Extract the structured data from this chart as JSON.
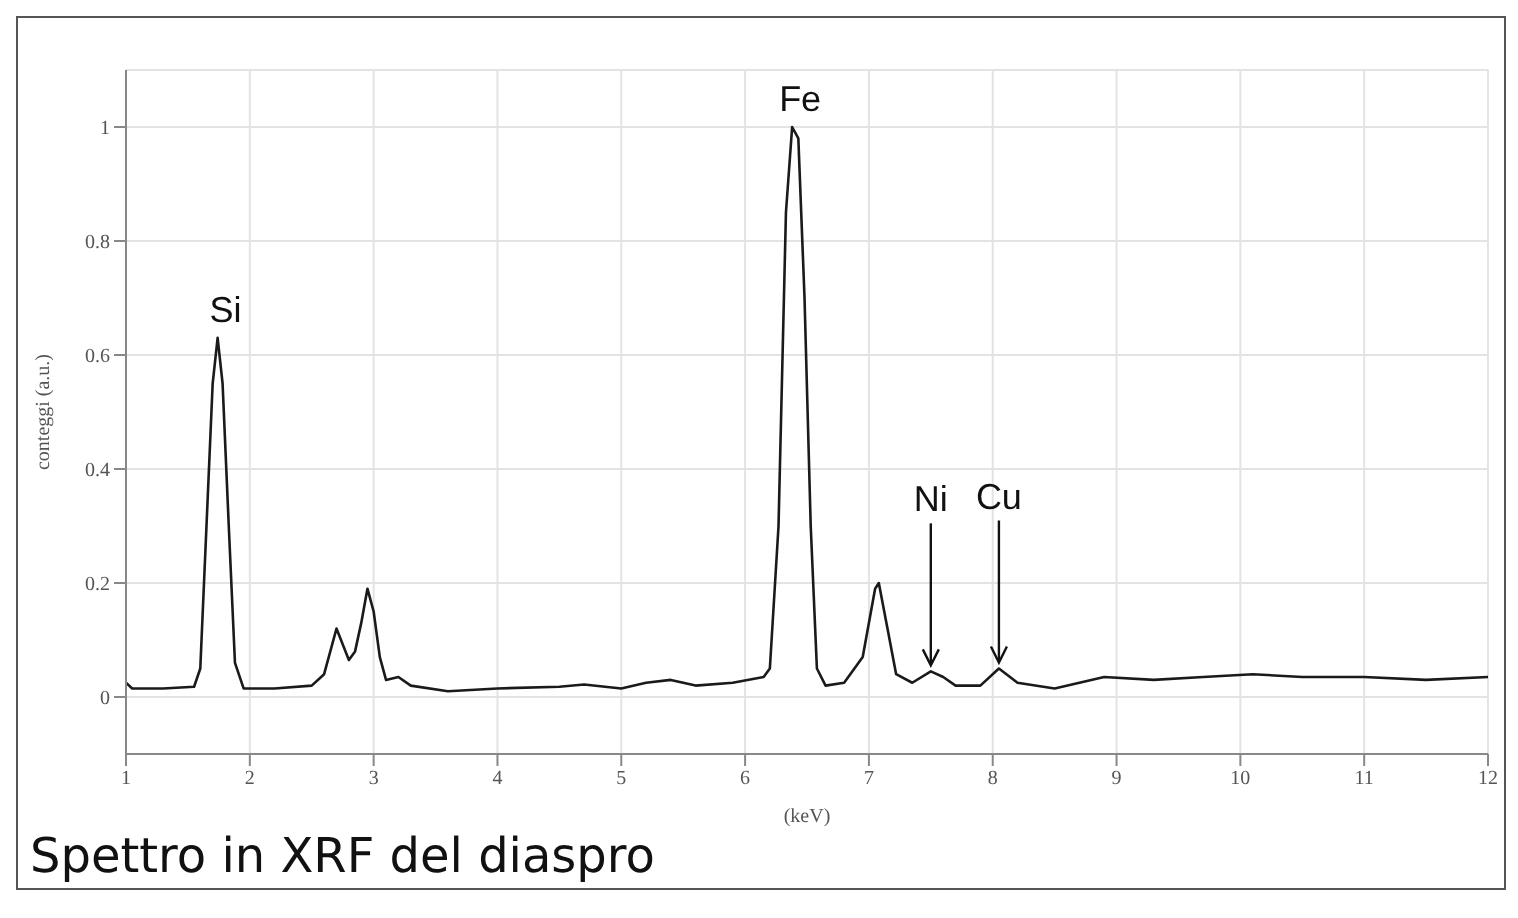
{
  "chart_data": {
    "type": "line",
    "xlabel": "(keV)",
    "ylabel": "conteggi (a.u.)",
    "xlim": [
      1,
      12
    ],
    "xticks": [
      1,
      2,
      3,
      4,
      5,
      6,
      7,
      8,
      9,
      10,
      11,
      12
    ],
    "ylim": [
      -0.1,
      1.1
    ],
    "yticks": [
      0,
      0.2,
      0.4,
      0.6,
      0.8,
      1
    ],
    "grid": true,
    "marker": "none",
    "line_style": "solid",
    "x": [
      1.0,
      1.05,
      1.3,
      1.55,
      1.6,
      1.65,
      1.7,
      1.74,
      1.78,
      1.83,
      1.88,
      1.95,
      2.2,
      2.5,
      2.6,
      2.7,
      2.8,
      2.85,
      2.9,
      2.95,
      3.0,
      3.05,
      3.1,
      3.2,
      3.3,
      3.6,
      4.0,
      4.5,
      4.7,
      5.0,
      5.2,
      5.4,
      5.6,
      5.9,
      6.15,
      6.2,
      6.27,
      6.33,
      6.38,
      6.43,
      6.48,
      6.53,
      6.58,
      6.65,
      6.8,
      6.95,
      7.05,
      7.08,
      7.15,
      7.22,
      7.35,
      7.5,
      7.6,
      7.7,
      7.9,
      8.05,
      8.2,
      8.5,
      8.9,
      9.3,
      9.7,
      10.1,
      10.5,
      11.0,
      11.5,
      12.0
    ],
    "series": [
      {
        "color": "#1a1a1a",
        "values": [
          0.025,
          0.015,
          0.015,
          0.018,
          0.05,
          0.3,
          0.55,
          0.63,
          0.55,
          0.3,
          0.06,
          0.015,
          0.015,
          0.02,
          0.04,
          0.12,
          0.065,
          0.08,
          0.13,
          0.19,
          0.15,
          0.07,
          0.03,
          0.035,
          0.02,
          0.01,
          0.015,
          0.018,
          0.022,
          0.015,
          0.025,
          0.03,
          0.02,
          0.025,
          0.035,
          0.05,
          0.3,
          0.85,
          1.0,
          0.98,
          0.7,
          0.3,
          0.05,
          0.02,
          0.025,
          0.07,
          0.19,
          0.2,
          0.12,
          0.04,
          0.025,
          0.045,
          0.035,
          0.02,
          0.02,
          0.05,
          0.025,
          0.015,
          0.035,
          0.03,
          0.035,
          0.04,
          0.035,
          0.035,
          0.03,
          0.035
        ]
      }
    ],
    "annotations": [
      {
        "text": "Si",
        "x": 1.74,
        "y": 0.63
      },
      {
        "text": "Fe",
        "x": 6.38,
        "y": 1.0
      },
      {
        "text": "Ni",
        "x": 7.5,
        "y": 0.045
      },
      {
        "text": "Cu",
        "x": 8.05,
        "y": 0.05
      },
      "Spettro in XRF del diaspro"
    ]
  }
}
